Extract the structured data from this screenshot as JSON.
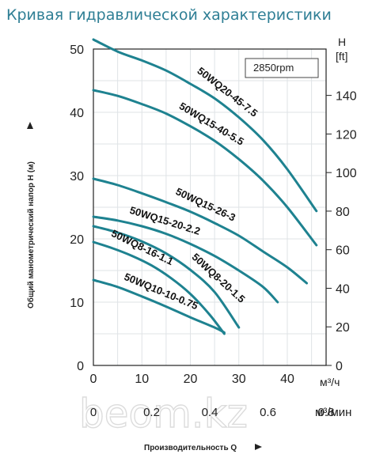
{
  "title": "Кривая гидравлической характеристики",
  "watermark": "beom.kz",
  "chart_data": {
    "type": "line",
    "rpm_label": "2850rpm",
    "ylabel": "Общий манометрический напор H (м)",
    "y_ticks": [
      "0",
      "10",
      "20",
      "30",
      "40",
      "50"
    ],
    "ylim": [
      0,
      50
    ],
    "right_axis_title": [
      "H",
      "[ft]"
    ],
    "right_ticks": [
      "0",
      "20",
      "40",
      "60",
      "80",
      "100",
      "120",
      "140"
    ],
    "x_ticks": [
      "0",
      "10",
      "20",
      "30",
      "40"
    ],
    "xlim": [
      0,
      48
    ],
    "x_unit": "м³/ч",
    "x2_ticks": [
      "0",
      "0.2",
      "0.4",
      "0.6",
      "0.8"
    ],
    "x2_unit": "м³/мин",
    "xlabel": "Производительность Q",
    "grid": true,
    "series": [
      {
        "name": "50WQ20-45-7.5",
        "x": [
          0,
          5,
          10,
          15,
          20,
          25,
          30,
          35,
          40,
          46
        ],
        "y": [
          51.5,
          49.6,
          48.2,
          46.6,
          44.5,
          42.2,
          39.2,
          35.6,
          31.0,
          24.4
        ]
      },
      {
        "name": "50WQ15-40-5.5",
        "x": [
          0,
          5,
          10,
          15,
          20,
          25,
          30,
          35,
          40,
          46
        ],
        "y": [
          43.5,
          42.6,
          41.3,
          39.8,
          37.8,
          35.5,
          32.6,
          29.2,
          25.0,
          19.0
        ]
      },
      {
        "name": "50WQ15-26-3",
        "x": [
          0,
          5,
          10,
          15,
          20,
          25,
          30,
          35,
          40,
          44
        ],
        "y": [
          29.5,
          28.5,
          27.2,
          25.8,
          24.3,
          22.5,
          20.5,
          18.0,
          15.5,
          13.0
        ]
      },
      {
        "name": "50WQ15-20-2.2",
        "x": [
          0,
          5,
          10,
          15,
          20,
          25,
          30,
          35,
          38
        ],
        "y": [
          23.5,
          22.9,
          22.0,
          20.8,
          19.2,
          17.3,
          15.0,
          12.4,
          10.0
        ]
      },
      {
        "name": "50WQ8-20-1.5",
        "x": [
          0,
          5,
          10,
          15,
          20,
          25,
          30
        ],
        "y": [
          22.0,
          21.0,
          19.6,
          17.7,
          15.1,
          11.6,
          6.0
        ]
      },
      {
        "name": "50WQ8-16-1.1",
        "x": [
          0,
          4,
          8,
          12,
          16,
          20,
          24,
          27
        ],
        "y": [
          19.5,
          18.5,
          17.3,
          15.8,
          13.8,
          11.3,
          8.0,
          5.0
        ]
      },
      {
        "name": "50WQ10-10-0.75",
        "x": [
          0,
          5,
          10,
          15,
          20,
          25,
          27
        ],
        "y": [
          13.5,
          12.4,
          10.9,
          9.3,
          7.6,
          6.0,
          5.2
        ]
      }
    ],
    "colors": {
      "curve": "#1e8290",
      "grid": "#dfe3e6",
      "axis": "#222222",
      "title": "#2f7f95"
    }
  }
}
